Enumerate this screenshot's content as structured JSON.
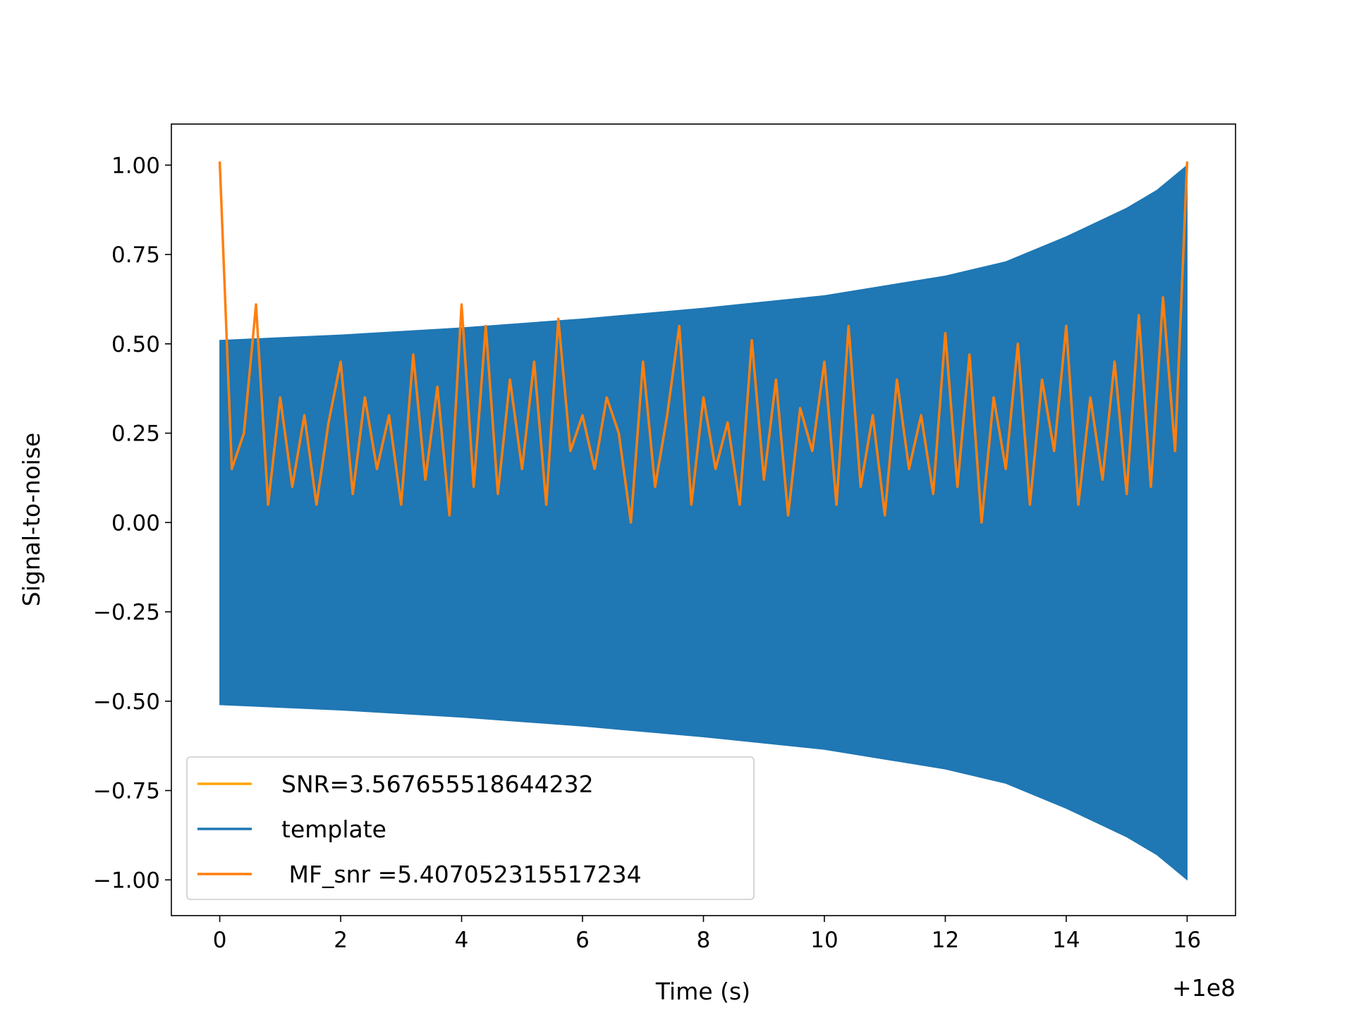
{
  "chart_data": {
    "type": "line",
    "xlabel": "Time (s)",
    "ylabel": "Signal-to-noise",
    "x_offset_label": "+1e8",
    "xlim": [
      -0.8,
      16.8
    ],
    "ylim": [
      -1.1,
      1.115
    ],
    "xticks": [
      0,
      2,
      4,
      6,
      8,
      10,
      12,
      14,
      16
    ],
    "yticks": [
      {
        "value": -1,
        "label": "−1.00"
      },
      {
        "value": -0.75,
        "label": "−0.75"
      },
      {
        "value": -0.5,
        "label": "−0.50"
      },
      {
        "value": -0.25,
        "label": "−0.25"
      },
      {
        "value": 0,
        "label": "0.00"
      },
      {
        "value": 0.25,
        "label": "0.25"
      },
      {
        "value": 0.5,
        "label": "0.50"
      },
      {
        "value": 0.75,
        "label": "0.75"
      },
      {
        "value": 1,
        "label": "1.00"
      }
    ],
    "legend": "lower left",
    "series": [
      {
        "name": "SNR=3.567655518644232",
        "color": "#ffa500"
      },
      {
        "name": "template",
        "color": "#1f77b4",
        "style": "envelope",
        "x": [
          0,
          2,
          4,
          6,
          8,
          10,
          12,
          13,
          14,
          15,
          15.5,
          16
        ],
        "values": [
          0.51,
          0.525,
          0.545,
          0.57,
          0.6,
          0.635,
          0.69,
          0.73,
          0.8,
          0.88,
          0.93,
          1.0
        ]
      },
      {
        "name": " MF_snr =5.407052315517234",
        "color": "#ff7f0e",
        "x": [
          0,
          0.2,
          0.4,
          0.6,
          0.8,
          1,
          1.2,
          1.4,
          1.6,
          1.8,
          2,
          2.2,
          2.4,
          2.6,
          2.8,
          3,
          3.2,
          3.4,
          3.6,
          3.8,
          4,
          4.2,
          4.4,
          4.6,
          4.8,
          5,
          5.2,
          5.4,
          5.6,
          5.8,
          6,
          6.2,
          6.4,
          6.6,
          6.8,
          7,
          7.2,
          7.4,
          7.6,
          7.8,
          8,
          8.2,
          8.4,
          8.6,
          8.8,
          9,
          9.2,
          9.4,
          9.6,
          9.8,
          10,
          10.2,
          10.4,
          10.6,
          10.8,
          11,
          11.2,
          11.4,
          11.6,
          11.8,
          12,
          12.2,
          12.4,
          12.6,
          12.8,
          13,
          13.2,
          13.4,
          13.6,
          13.8,
          14,
          14.2,
          14.4,
          14.6,
          14.8,
          15,
          15.2,
          15.4,
          15.6,
          15.8,
          16
        ],
        "values": [
          1.01,
          0.15,
          0.25,
          0.61,
          0.05,
          0.35,
          0.1,
          0.3,
          0.05,
          0.28,
          0.45,
          0.08,
          0.35,
          0.15,
          0.3,
          0.05,
          0.47,
          0.12,
          0.38,
          0.02,
          0.61,
          0.1,
          0.55,
          0.08,
          0.4,
          0.15,
          0.45,
          0.05,
          0.57,
          0.2,
          0.3,
          0.15,
          0.35,
          0.25,
          0.0,
          0.45,
          0.1,
          0.3,
          0.55,
          0.05,
          0.35,
          0.15,
          0.28,
          0.05,
          0.51,
          0.12,
          0.4,
          0.02,
          0.32,
          0.2,
          0.45,
          0.05,
          0.55,
          0.1,
          0.3,
          0.02,
          0.4,
          0.15,
          0.3,
          0.08,
          0.53,
          0.1,
          0.47,
          0.0,
          0.35,
          0.15,
          0.5,
          0.05,
          0.4,
          0.2,
          0.55,
          0.05,
          0.35,
          0.12,
          0.45,
          0.08,
          0.58,
          0.1,
          0.63,
          0.2,
          1.01
        ]
      }
    ]
  }
}
